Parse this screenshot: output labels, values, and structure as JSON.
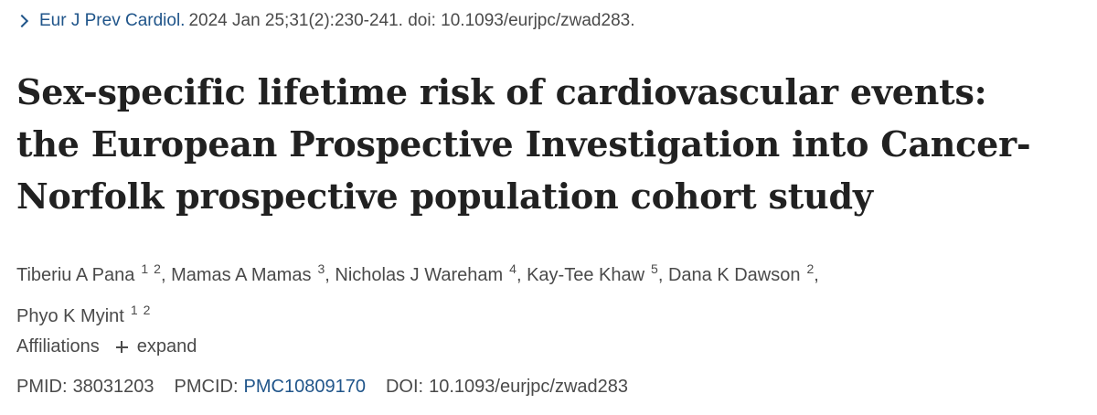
{
  "citation": {
    "journal": "Eur J Prev Cardiol.",
    "details": "2024 Jan 25;31(2):230-241. doi: 10.1093/eurjpc/zwad283."
  },
  "title": {
    "lines": [
      "Sex-specific lifetime risk of cardiovascular events:",
      "the European Prospective Investigation into Cancer-",
      "Norfolk prospective population cohort study"
    ]
  },
  "authors": [
    {
      "name": "Tiberiu A Pana",
      "affiliations": [
        "1",
        "2"
      ]
    },
    {
      "name": "Mamas A Mamas",
      "affiliations": [
        "3"
      ]
    },
    {
      "name": "Nicholas J Wareham",
      "affiliations": [
        "4"
      ]
    },
    {
      "name": "Kay-Tee Khaw",
      "affiliations": [
        "5"
      ]
    },
    {
      "name": "Dana K Dawson",
      "affiliations": [
        "2"
      ]
    },
    {
      "name": "Phyo K Myint",
      "affiliations": [
        "1",
        "2"
      ]
    }
  ],
  "affiliations": {
    "label": "Affiliations",
    "expand_label": "expand"
  },
  "identifiers": {
    "pmid_label": "PMID:",
    "pmid": "38031203",
    "pmcid_label": "PMCID:",
    "pmcid": "PMC10809170",
    "doi_label": "DOI:",
    "doi": "10.1093/eurjpc/zwad283"
  },
  "colors": {
    "link": "#20558a",
    "text": "#212121",
    "muted": "#4a4a4a"
  }
}
